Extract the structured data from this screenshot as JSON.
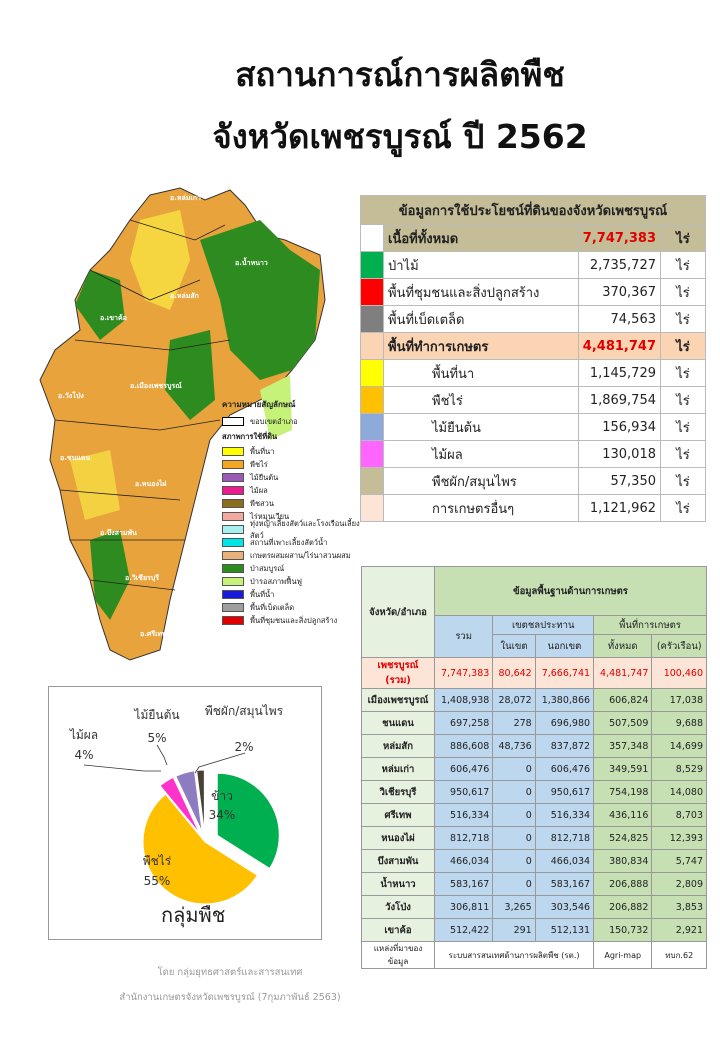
{
  "title": {
    "line1": "สถานการณ์การผลิตพืช",
    "line2": "จังหวัดเพชรบูรณ์ ปี 2562"
  },
  "map": {
    "districts": [
      "อ.หล่มเก่า",
      "อ.น้ำหนาว",
      "อ.หล่มสัก",
      "อ.เขาค้อ",
      "อ.เมืองเพชรบูรณ์",
      "อ.วังโป่ง",
      "อ.ชนแดน",
      "อ.หนองไผ่",
      "อ.บึงสามพัน",
      "อ.วิเชียรบุรี",
      "อ.ศรีเทพ"
    ],
    "legend_title": "ความหมายสัญลักษณ์",
    "legend_boundary": "ขอบเขตอำเภอ",
    "legend_sub": "สภาพการใช้ที่ดิน",
    "legend_items": [
      {
        "label": "พื้นที่นา",
        "color": "#ffff00"
      },
      {
        "label": "พืชไร่",
        "color": "#f5a623"
      },
      {
        "label": "ไม้ยืนต้น",
        "color": "#9b59b6"
      },
      {
        "label": "ไม้ผล",
        "color": "#e91e8c"
      },
      {
        "label": "พืชสวน",
        "color": "#8b6d1e"
      },
      {
        "label": "ไร่หมุนเวียน",
        "color": "#f4a9a0"
      },
      {
        "label": "ทุ่งหญ้าเลี้ยงสัตว์และโรงเรือนเลี้ยงสัตว์",
        "color": "#a8f0f0"
      },
      {
        "label": "สถานที่เพาะเลี้ยงสัตว์น้ำ",
        "color": "#00e5e5"
      },
      {
        "label": "เกษตรผสมผสาน/ไร่นาสวนผสม",
        "color": "#e8b27a"
      },
      {
        "label": "ป่าสมบูรณ์",
        "color": "#2e8b1f"
      },
      {
        "label": "ป่ารอสภาพฟื้นฟู",
        "color": "#c6f27a"
      },
      {
        "label": "พื้นที่น้ำ",
        "color": "#1a1adf"
      },
      {
        "label": "พื้นที่เบ็ดเตล็ด",
        "color": "#9e9e9e"
      },
      {
        "label": "พื้นที่ชุมชนและสิ่งปลูกสร้าง",
        "color": "#e00000"
      }
    ]
  },
  "landuse": {
    "title": "ข้อมูลการใช้ประโยชน์ที่ดินของจังหวัดเพชรบูรณ์",
    "total": {
      "label": "เนื้อที่ทั้งหมด",
      "value": "7,747,383",
      "unit": "ไร่"
    },
    "rows1": [
      {
        "label": "ป่าไม้",
        "value": "2,735,727",
        "unit": "ไร่",
        "color": "#00b050"
      },
      {
        "label": "พื้นที่ชุมชนและสิ่งปลูกสร้าง",
        "value": "370,367",
        "unit": "ไร่",
        "color": "#ff0000"
      },
      {
        "label": "พื้นที่เบ็ดเตล็ด",
        "value": "74,563",
        "unit": "ไร่",
        "color": "#7f7f7f"
      }
    ],
    "agri": {
      "label": "พื้นที่ทำการเกษตร",
      "value": "4,481,747",
      "unit": "ไร่"
    },
    "rows2": [
      {
        "label": "พื้นที่นา",
        "value": "1,145,729",
        "unit": "ไร่",
        "color": "#ffff00"
      },
      {
        "label": "พืชไร่",
        "value": "1,869,754",
        "unit": "ไร่",
        "color": "#ffc000"
      },
      {
        "label": "ไม้ยืนต้น",
        "value": "156,934",
        "unit": "ไร่",
        "color": "#8eaadb"
      },
      {
        "label": "ไม้ผล",
        "value": "130,018",
        "unit": "ไร่",
        "color": "#ff66ff"
      },
      {
        "label": "พืชผัก/สมุนไพร",
        "value": "57,350",
        "unit": "ไร่",
        "color": "#c4bd97"
      },
      {
        "label": "การเกษตรอื่นๆ",
        "value": "1,121,962",
        "unit": "ไร่",
        "color": "#fce4d6"
      }
    ]
  },
  "district": {
    "title": "ข้อมูลพื้นฐานด้านการเกษตร",
    "col_name": "จังหวัด/อำเภอ",
    "col_total": "รวม",
    "col_irr": "เขตชลประทาน",
    "col_in": "ในเขต",
    "col_out": "นอกเขต",
    "col_agri": "พื้นที่การเกษตร",
    "col_all": "ทั้งหมด",
    "col_hh": "(ครัวเรือน)",
    "sum": {
      "name": "เพชรบูรณ์ (รวม)",
      "total": "7,747,383",
      "in": "80,642",
      "out": "7,666,741",
      "all": "4,481,747",
      "hh": "100,460"
    },
    "rows": [
      {
        "name": "เมืองเพชรบูรณ์",
        "total": "1,408,938",
        "in": "28,072",
        "out": "1,380,866",
        "all": "606,824",
        "hh": "17,038"
      },
      {
        "name": "ชนแดน",
        "total": "697,258",
        "in": "278",
        "out": "696,980",
        "all": "507,509",
        "hh": "9,688"
      },
      {
        "name": "หล่มสัก",
        "total": "886,608",
        "in": "48,736",
        "out": "837,872",
        "all": "357,348",
        "hh": "14,699"
      },
      {
        "name": "หล่มเก่า",
        "total": "606,476",
        "in": "0",
        "out": "606,476",
        "all": "349,591",
        "hh": "8,529"
      },
      {
        "name": "วิเชียรบุรี",
        "total": "950,617",
        "in": "0",
        "out": "950,617",
        "all": "754,198",
        "hh": "14,080"
      },
      {
        "name": "ศรีเทพ",
        "total": "516,334",
        "in": "0",
        "out": "516,334",
        "all": "436,116",
        "hh": "8,703"
      },
      {
        "name": "หนองไผ่",
        "total": "812,718",
        "in": "0",
        "out": "812,718",
        "all": "524,825",
        "hh": "12,393"
      },
      {
        "name": "บึงสามพัน",
        "total": "466,034",
        "in": "0",
        "out": "466,034",
        "all": "380,834",
        "hh": "5,747"
      },
      {
        "name": "น้ำหนาว",
        "total": "583,167",
        "in": "0",
        "out": "583,167",
        "all": "206,888",
        "hh": "2,809"
      },
      {
        "name": "วังโป่ง",
        "total": "306,811",
        "in": "3,265",
        "out": "303,546",
        "all": "206,882",
        "hh": "3,853"
      },
      {
        "name": "เขาค้อ",
        "total": "512,422",
        "in": "291",
        "out": "512,131",
        "all": "150,732",
        "hh": "2,921"
      }
    ],
    "source_label": "แหล่งที่มาของข้อมูล",
    "source1": "ระบบสารสนเทศด้านการผลิตพืช (รต.)",
    "source2": "Agri-map",
    "source3": "ทบก.62"
  },
  "chart_data": {
    "type": "pie",
    "title": "กลุ่มพืช",
    "categories": [
      "ข้าว",
      "พืชไร่",
      "ไม้ผล",
      "ไม้ยืนต้น",
      "พืชผัก/สมุนไพร"
    ],
    "values": [
      34,
      55,
      4,
      5,
      2
    ],
    "labels": [
      "34%",
      "55%",
      "4%",
      "5%",
      "2%"
    ],
    "colors": [
      "#00b050",
      "#ffc000",
      "#ff33cc",
      "#8e7cc3",
      "#4a3f35"
    ]
  },
  "footer": {
    "line1": "โดย กลุ่มยุทธศาสตร์และสารสนเทศ",
    "line2": "สำนักงานเกษตรจังหวัดเพชรบูรณ์ (7กุมภาพันธ์ 2563)"
  }
}
